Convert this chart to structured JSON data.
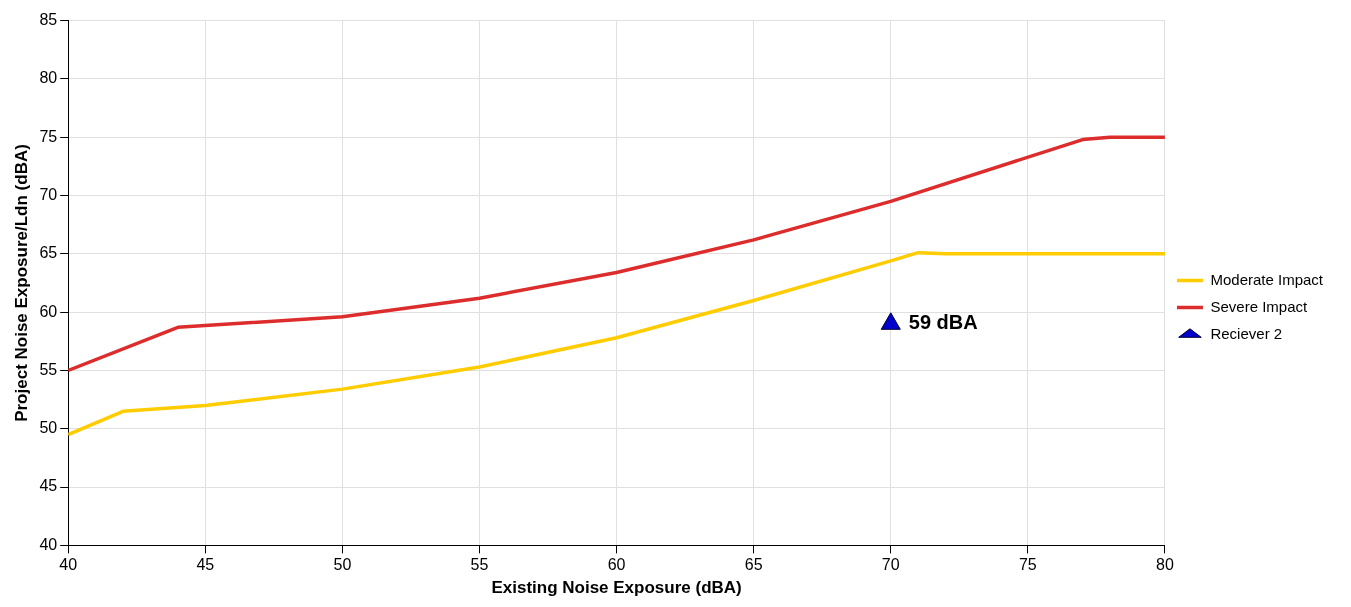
{
  "chart_data": {
    "type": "line",
    "xlabel": "Existing Noise Exposure (dBA)",
    "ylabel": "Project Noise Exposure/Ldn (dBA)",
    "xlim": [
      40,
      80
    ],
    "xticks": [
      40,
      45,
      50,
      55,
      60,
      65,
      70,
      75,
      80
    ],
    "ylim": [
      40,
      85
    ],
    "yticks": [
      40,
      45,
      50,
      55,
      60,
      65,
      70,
      75,
      80,
      85
    ],
    "grid": true,
    "legend": "right",
    "series": [
      {
        "name": "Moderate Impact",
        "color": "#ffcc00",
        "x": [
          40,
          42,
          45,
          50,
          55,
          60,
          65,
          70,
          71,
          72,
          80
        ],
        "values": [
          49.5,
          51.5,
          52,
          53.4,
          55.3,
          57.8,
          61,
          64.4,
          65.1,
          65,
          65
        ]
      },
      {
        "name": "Severe Impact",
        "color": "#dd2c2c",
        "x": [
          40,
          44,
          50,
          55,
          60,
          65,
          70,
          77,
          78,
          80
        ],
        "values": [
          55,
          58.7,
          59.6,
          61.2,
          63.4,
          66.2,
          69.5,
          74.8,
          75,
          75
        ]
      },
      {
        "name": "Reciever 2",
        "type": "scatter",
        "marker": "triangle",
        "color": "#0000cc",
        "x": [
          70
        ],
        "values": [
          59
        ]
      }
    ],
    "annotations": [
      {
        "text": "59 dBA",
        "x": 70,
        "y": 59
      }
    ]
  }
}
